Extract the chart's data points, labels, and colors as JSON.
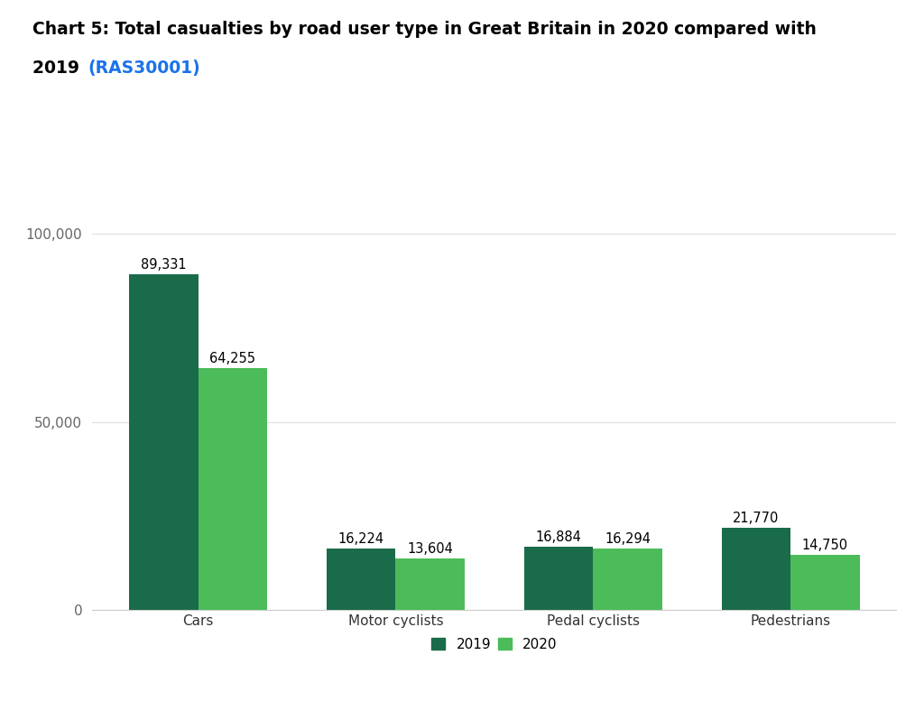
{
  "title_line1": "Chart 5: Total casualties by road user type in Great Britain in 2020 compared with",
  "title_line2_bold": "2019 ",
  "title_line2_link": "(RAS30001)",
  "categories": [
    "Cars",
    "Motor cyclists",
    "Pedal cyclists",
    "Pedestrians"
  ],
  "values_2019": [
    89331,
    16224,
    16884,
    21770
  ],
  "values_2020": [
    64255,
    13604,
    16294,
    14750
  ],
  "labels_2019": [
    "89,331",
    "16,224",
    "16,884",
    "21,770"
  ],
  "labels_2020": [
    "64,255",
    "13,604",
    "16,294",
    "14,750"
  ],
  "color_2019": "#1a6b4a",
  "color_2020": "#4cbb5a",
  "ylim": [
    0,
    110000
  ],
  "yticks": [
    0,
    50000,
    100000
  ],
  "ytick_labels": [
    "0",
    "50,000",
    "100,000"
  ],
  "background_color": "#ffffff",
  "bar_width": 0.35,
  "legend_labels": [
    "2019",
    "2020"
  ],
  "title_color": "#000000",
  "link_color": "#1a73e8",
  "ytick_color": "#666666",
  "xtick_color": "#333333"
}
